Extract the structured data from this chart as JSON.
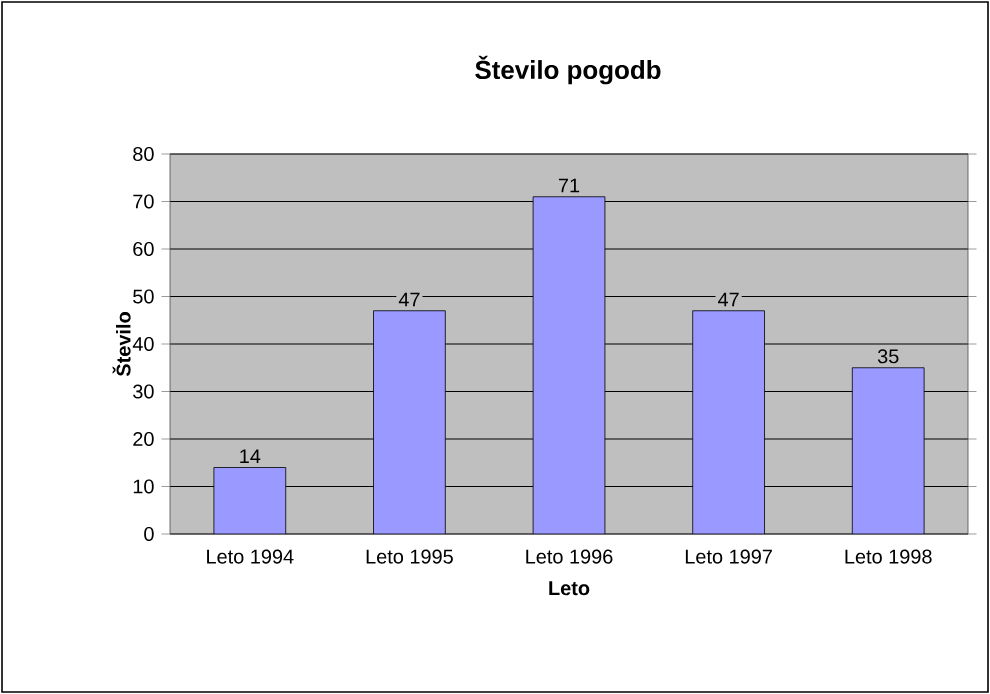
{
  "chart_data": {
    "type": "bar",
    "title": "Število pogodb",
    "xlabel": "Leto",
    "ylabel": "Število",
    "categories": [
      "Leto 1994",
      "Leto 1995",
      "Leto 1996",
      "Leto 1997",
      "Leto 1998"
    ],
    "values": [
      14,
      47,
      71,
      47,
      35
    ],
    "color": "#9999ff",
    "ylim": [
      0,
      80
    ],
    "yticks": [
      0,
      10,
      20,
      30,
      40,
      50,
      60,
      70,
      80
    ],
    "grid": "y",
    "data_labels": true
  }
}
